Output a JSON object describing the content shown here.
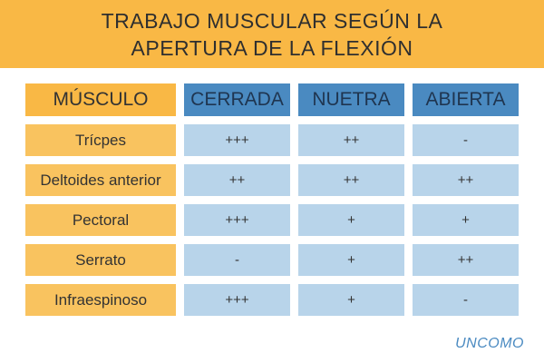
{
  "title": {
    "line1": "TRABAJO MUSCULAR SEGÚN LA",
    "line2": "APERTURA DE LA FLEXIÓN"
  },
  "table": {
    "headers": [
      "MÚSCULO",
      "CERRADA",
      "NUETRA",
      "ABIERTA"
    ],
    "rows": [
      {
        "muscle": "Trícpes",
        "values": [
          "+++",
          "++",
          "-"
        ]
      },
      {
        "muscle": "Deltoides anterior",
        "values": [
          "++",
          "++",
          "++"
        ]
      },
      {
        "muscle": "Pectoral",
        "values": [
          "+++",
          "+",
          "+"
        ]
      },
      {
        "muscle": "Serrato",
        "values": [
          "-",
          "+",
          "++"
        ]
      },
      {
        "muscle": "Infraespinoso",
        "values": [
          "+++",
          "+",
          "-"
        ]
      }
    ]
  },
  "logo": {
    "text": "UNCOMO"
  },
  "colors": {
    "orange": "#f9b845",
    "blue_header": "#4a8ac1",
    "blue_cell": "#b8d4ea"
  }
}
